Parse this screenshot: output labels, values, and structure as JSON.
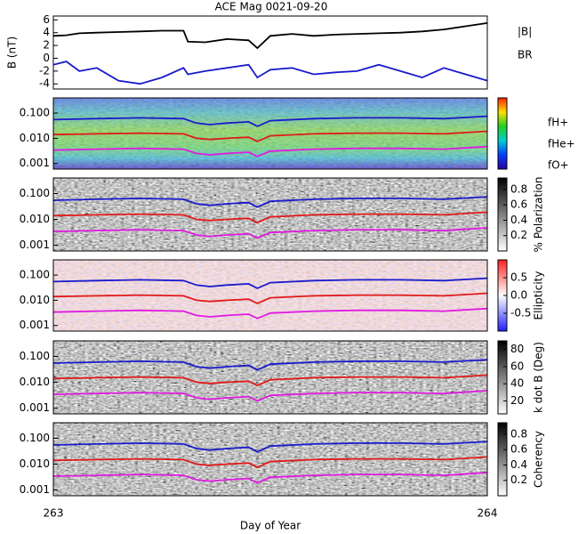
{
  "chart_data": [
    {
      "type": "line",
      "title": "ACE Mag 0021-09-20",
      "ylabel": "B (nT)",
      "x": [
        263,
        263.03,
        263.06,
        263.1,
        263.15,
        263.2,
        263.25,
        263.3,
        263.31,
        263.35,
        263.4,
        263.45,
        263.47,
        263.5,
        263.55,
        263.6,
        263.65,
        263.7,
        263.75,
        263.8,
        263.85,
        263.9,
        263.95,
        264
      ],
      "series": [
        {
          "name": "|B|",
          "color": "#000000",
          "values": [
            3.5,
            3.6,
            3.9,
            4.0,
            4.1,
            4.2,
            4.3,
            4.3,
            2.6,
            2.5,
            3.0,
            2.8,
            1.6,
            3.5,
            3.8,
            3.5,
            3.7,
            3.8,
            3.9,
            4.0,
            4.2,
            4.5,
            5.0,
            5.5
          ]
        },
        {
          "name": "BR",
          "color": "#1a1acc",
          "values": [
            -1.0,
            -0.5,
            -2.0,
            -1.5,
            -3.5,
            -4.0,
            -3.0,
            -1.5,
            -2.5,
            -2.0,
            -1.5,
            -1.0,
            -3.0,
            -1.8,
            -1.5,
            -2.5,
            -2.2,
            -2.0,
            -1.0,
            -2.0,
            -3.0,
            -1.5,
            -2.5,
            -3.5
          ]
        }
      ],
      "xlim": [
        263,
        264
      ],
      "ylim": [
        -4.8,
        6.6
      ],
      "yticks": [
        -4,
        -2,
        0,
        2,
        4,
        6
      ]
    },
    {
      "type": "spectrogram",
      "colorbar": "rainbow",
      "x": [
        263,
        263.1,
        263.2,
        263.3,
        263.33,
        263.36,
        263.4,
        263.45,
        263.47,
        263.5,
        263.6,
        263.7,
        263.8,
        263.9,
        264
      ],
      "series": [
        {
          "name": "fH+",
          "color": "#1a1acc",
          "values": [
            0.055,
            0.06,
            0.065,
            0.06,
            0.04,
            0.035,
            0.04,
            0.045,
            0.03,
            0.05,
            0.06,
            0.065,
            0.065,
            0.06,
            0.075
          ]
        },
        {
          "name": "fHe+",
          "color": "#e01a1a",
          "values": [
            0.014,
            0.015,
            0.016,
            0.015,
            0.01,
            0.009,
            0.01,
            0.011,
            0.0075,
            0.0125,
            0.015,
            0.016,
            0.016,
            0.015,
            0.019
          ]
        },
        {
          "name": "fO+",
          "color": "#e01ae0",
          "values": [
            0.0034,
            0.0037,
            0.004,
            0.0037,
            0.0025,
            0.0022,
            0.0025,
            0.0028,
            0.0019,
            0.0031,
            0.0037,
            0.004,
            0.004,
            0.0037,
            0.0047
          ]
        }
      ],
      "xlim": [
        263,
        264
      ],
      "ylim": [
        0.0006,
        0.4
      ],
      "yticks": [
        {
          "value": 0.001,
          "label": "0.001"
        },
        {
          "value": 0.01,
          "label": "0.010"
        },
        {
          "value": 0.1,
          "label": "0.100"
        }
      ]
    },
    {
      "type": "spectrogram",
      "colorbar": "gray",
      "colorbar_label": "% Polarization",
      "clim": [
        0,
        0.95
      ],
      "cticks": [
        0.2,
        0.4,
        0.6,
        0.8
      ],
      "xlim": [
        263,
        264
      ],
      "ylim": [
        0.0006,
        0.4
      ],
      "yticks": [
        {
          "value": 0.001,
          "label": "0.001"
        },
        {
          "value": 0.01,
          "label": "0.010"
        },
        {
          "value": 0.1,
          "label": "0.100"
        }
      ]
    },
    {
      "type": "spectrogram",
      "colorbar": "redblue",
      "colorbar_label": "Ellipticity",
      "clim": [
        -1,
        1
      ],
      "cticks": [
        -0.5,
        {
          "value": 0,
          "label": "0.0"
        },
        0.5
      ],
      "xlim": [
        263,
        264
      ],
      "ylim": [
        0.0006,
        0.4
      ],
      "yticks": [
        {
          "value": 0.001,
          "label": "0.001"
        },
        {
          "value": 0.01,
          "label": "0.010"
        },
        {
          "value": 0.1,
          "label": "0.100"
        }
      ]
    },
    {
      "type": "spectrogram",
      "colorbar": "gray",
      "colorbar_label": "k dot B (Deg)",
      "clim": [
        5,
        90
      ],
      "cticks": [
        20,
        40,
        60,
        80
      ],
      "xlim": [
        263,
        264
      ],
      "ylim": [
        0.0006,
        0.4
      ],
      "yticks": [
        {
          "value": 0.001,
          "label": "0.001"
        },
        {
          "value": 0.01,
          "label": "0.010"
        },
        {
          "value": 0.1,
          "label": "0.100"
        }
      ]
    },
    {
      "type": "spectrogram",
      "colorbar": "gray",
      "colorbar_label": "Coherency",
      "clim": [
        0,
        0.95
      ],
      "cticks": [
        0.2,
        0.4,
        0.6,
        0.8
      ],
      "xlim": [
        263,
        264
      ],
      "ylim": [
        0.0006,
        0.4
      ],
      "yticks": [
        {
          "value": 0.001,
          "label": "0.001"
        },
        {
          "value": 0.01,
          "label": "0.010"
        },
        {
          "value": 0.1,
          "label": "0.100"
        }
      ],
      "xticks": [
        263,
        264
      ],
      "xlabel": "Day of Year"
    }
  ]
}
